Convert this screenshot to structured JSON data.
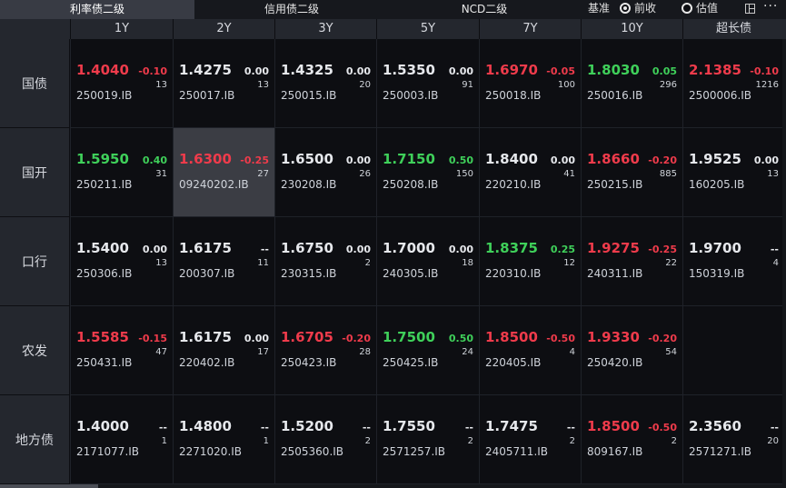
{
  "tabs": [
    {
      "label": "利率债二级",
      "active": true
    },
    {
      "label": "信用债二级",
      "active": false
    },
    {
      "label": "NCD二级",
      "active": false
    }
  ],
  "controls": {
    "baseline_label": "基准",
    "options": [
      {
        "label": "前收",
        "checked": true
      },
      {
        "label": "估值",
        "checked": false
      }
    ],
    "icons": [
      "layout-icon",
      "more-icon"
    ],
    "more_glyph": "···"
  },
  "columns": [
    "1Y",
    "2Y",
    "3Y",
    "5Y",
    "7Y",
    "10Y",
    "超长债"
  ],
  "colors": {
    "up": "#ef3b4b",
    "down": "#3fd05a",
    "flat": "#e6e8ec",
    "selected_bg": "#3b3d44"
  },
  "rows": [
    {
      "label": "国债",
      "cells": [
        {
          "price": "1.4040",
          "change": "-0.10",
          "volume": "13",
          "code": "250019.IB",
          "dir": "up"
        },
        {
          "price": "1.4275",
          "change": "0.00",
          "volume": "13",
          "code": "250017.IB",
          "dir": "flat"
        },
        {
          "price": "1.4325",
          "change": "0.00",
          "volume": "20",
          "code": "250015.IB",
          "dir": "flat"
        },
        {
          "price": "1.5350",
          "change": "0.00",
          "volume": "91",
          "code": "250003.IB",
          "dir": "flat"
        },
        {
          "price": "1.6970",
          "change": "-0.05",
          "volume": "100",
          "code": "250018.IB",
          "dir": "up"
        },
        {
          "price": "1.8030",
          "change": "0.05",
          "volume": "296",
          "code": "250016.IB",
          "dir": "down"
        },
        {
          "price": "2.1385",
          "change": "-0.10",
          "volume": "1216",
          "code": "2500006.IB",
          "dir": "up"
        }
      ]
    },
    {
      "label": "国开",
      "cells": [
        {
          "price": "1.5950",
          "change": "0.40",
          "volume": "31",
          "code": "250211.IB",
          "dir": "down"
        },
        {
          "price": "1.6300",
          "change": "-0.25",
          "volume": "27",
          "code": "09240202.IB",
          "dir": "up",
          "selected": true
        },
        {
          "price": "1.6500",
          "change": "0.00",
          "volume": "26",
          "code": "230208.IB",
          "dir": "flat"
        },
        {
          "price": "1.7150",
          "change": "0.50",
          "volume": "150",
          "code": "250208.IB",
          "dir": "down"
        },
        {
          "price": "1.8400",
          "change": "0.00",
          "volume": "41",
          "code": "220210.IB",
          "dir": "flat"
        },
        {
          "price": "1.8660",
          "change": "-0.20",
          "volume": "885",
          "code": "250215.IB",
          "dir": "up"
        },
        {
          "price": "1.9525",
          "change": "0.00",
          "volume": "13",
          "code": "160205.IB",
          "dir": "flat"
        }
      ]
    },
    {
      "label": "口行",
      "cells": [
        {
          "price": "1.5400",
          "change": "0.00",
          "volume": "13",
          "code": "250306.IB",
          "dir": "flat"
        },
        {
          "price": "1.6175",
          "change": "--",
          "volume": "11",
          "code": "200307.IB",
          "dir": "flat"
        },
        {
          "price": "1.6750",
          "change": "0.00",
          "volume": "2",
          "code": "230315.IB",
          "dir": "flat"
        },
        {
          "price": "1.7000",
          "change": "0.00",
          "volume": "18",
          "code": "240305.IB",
          "dir": "flat"
        },
        {
          "price": "1.8375",
          "change": "0.25",
          "volume": "12",
          "code": "220310.IB",
          "dir": "down"
        },
        {
          "price": "1.9275",
          "change": "-0.25",
          "volume": "22",
          "code": "240311.IB",
          "dir": "up"
        },
        {
          "price": "1.9700",
          "change": "--",
          "volume": "4",
          "code": "150319.IB",
          "dir": "flat"
        }
      ]
    },
    {
      "label": "农发",
      "cells": [
        {
          "price": "1.5585",
          "change": "-0.15",
          "volume": "47",
          "code": "250431.IB",
          "dir": "up"
        },
        {
          "price": "1.6175",
          "change": "0.00",
          "volume": "17",
          "code": "220402.IB",
          "dir": "flat"
        },
        {
          "price": "1.6705",
          "change": "-0.20",
          "volume": "28",
          "code": "250423.IB",
          "dir": "up"
        },
        {
          "price": "1.7500",
          "change": "0.50",
          "volume": "24",
          "code": "250425.IB",
          "dir": "down"
        },
        {
          "price": "1.8500",
          "change": "-0.50",
          "volume": "4",
          "code": "220405.IB",
          "dir": "up"
        },
        {
          "price": "1.9330",
          "change": "-0.20",
          "volume": "54",
          "code": "250420.IB",
          "dir": "up"
        },
        null
      ]
    },
    {
      "label": "地方债",
      "cells": [
        {
          "price": "1.4000",
          "change": "--",
          "volume": "1",
          "code": "2171077.IB",
          "dir": "flat"
        },
        {
          "price": "1.4800",
          "change": "--",
          "volume": "1",
          "code": "2271020.IB",
          "dir": "flat"
        },
        {
          "price": "1.5200",
          "change": "--",
          "volume": "2",
          "code": "2505360.IB",
          "dir": "flat"
        },
        {
          "price": "1.7550",
          "change": "--",
          "volume": "2",
          "code": "2571257.IB",
          "dir": "flat"
        },
        {
          "price": "1.7475",
          "change": "--",
          "volume": "2",
          "code": "2405711.IB",
          "dir": "flat"
        },
        {
          "price": "1.8500",
          "change": "-0.50",
          "volume": "2",
          "code": "809167.IB",
          "dir": "up"
        },
        {
          "price": "2.3560",
          "change": "--",
          "volume": "20",
          "code": "2571271.IB",
          "dir": "flat"
        }
      ]
    }
  ]
}
